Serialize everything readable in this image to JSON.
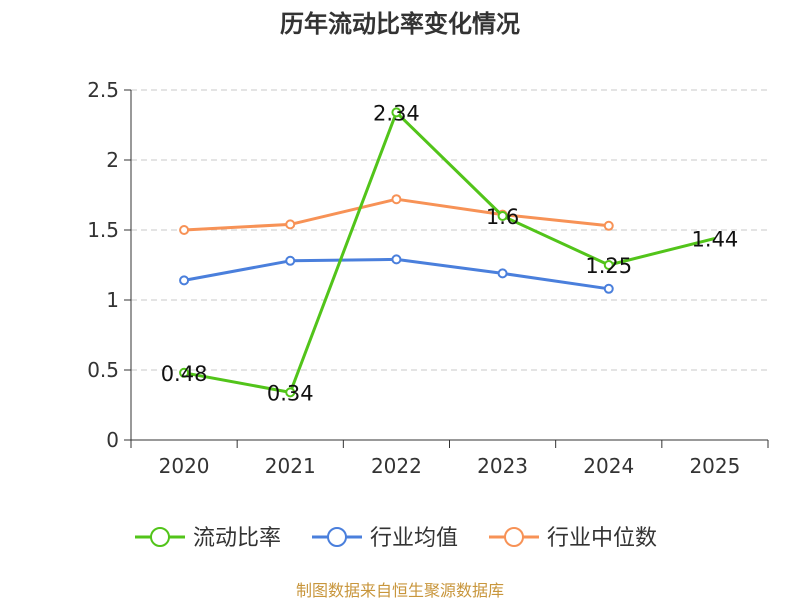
{
  "chart_data": {
    "type": "line",
    "title": "历年流动比率变化情况",
    "categories": [
      "2020",
      "2021",
      "2022",
      "2023",
      "2024",
      "2025"
    ],
    "ylim": [
      0,
      2.5
    ],
    "yticks": [
      "0",
      "0.5",
      "1",
      "1.5",
      "2",
      "2.5"
    ],
    "grid": true,
    "legend_position": "bottom",
    "series": [
      {
        "name": "流动比率",
        "color": "#52c41a",
        "values": [
          0.48,
          0.34,
          2.34,
          1.6,
          1.25,
          1.44
        ],
        "labels": [
          "0.48",
          "0.34",
          "2.34",
          "1.6",
          "1.25",
          "1.44"
        ]
      },
      {
        "name": "行业均值",
        "color": "#4a7fdc",
        "values": [
          1.14,
          1.28,
          1.29,
          1.19,
          1.08,
          null
        ]
      },
      {
        "name": "行业中位数",
        "color": "#f79256",
        "values": [
          1.5,
          1.54,
          1.72,
          1.61,
          1.53,
          null
        ]
      }
    ]
  },
  "source": "制图数据来自恒生聚源数据库"
}
